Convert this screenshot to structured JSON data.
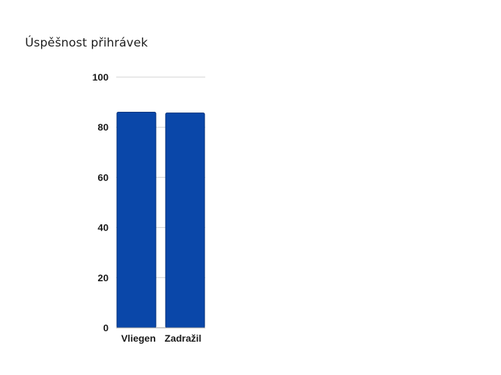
{
  "chart_data": {
    "type": "bar",
    "title": "Úspěšnost přihrávek",
    "xlabel": "",
    "ylabel": "",
    "categories": [
      "Vliegen",
      "Zadražil"
    ],
    "values": [
      86,
      85.7
    ],
    "ylim": [
      0,
      100
    ],
    "yticks": [
      0,
      20,
      40,
      60,
      80,
      100
    ],
    "grid": true,
    "legend": "none",
    "colors": {
      "bar_fill": "#0a47a9",
      "bar_stroke": "#06327a",
      "grid": "#d0d0d0",
      "axis": "#9a9a9a",
      "text": "#1a1a1a"
    }
  }
}
